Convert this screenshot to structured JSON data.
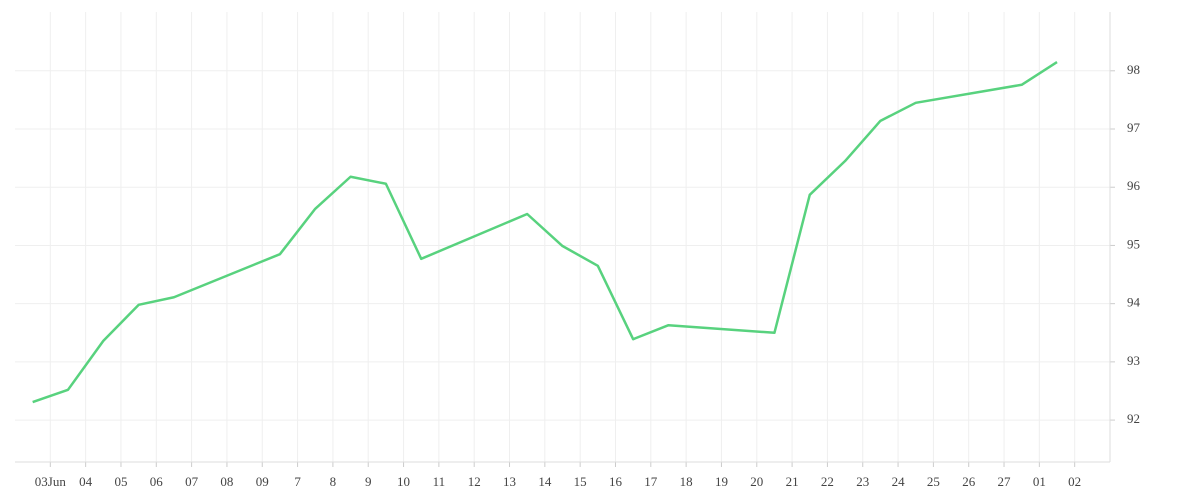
{
  "chart_data": {
    "type": "line",
    "x": [
      -0.5,
      0.5,
      1.5,
      2.5,
      3.5,
      6.5,
      7.5,
      8.5,
      9.5,
      10.5,
      13.5,
      14.5,
      15.5,
      16.5,
      17.5,
      20.5,
      21.5,
      22.5,
      23.5,
      24.5,
      27.5,
      28.5
    ],
    "series": [
      {
        "color": "#58d27e",
        "values": [
          92.31,
          92.52,
          93.36,
          93.98,
          94.11,
          94.85,
          95.63,
          96.18,
          96.06,
          94.77,
          95.54,
          94.99,
          94.65,
          93.39,
          93.63,
          93.5,
          95.87,
          96.45,
          97.14,
          97.45,
          97.76,
          98.15
        ]
      }
    ],
    "xlim": [
      -1,
      30
    ],
    "xticks": [
      {
        "value": 0,
        "label": "03Jun"
      },
      {
        "value": 1,
        "label": "04"
      },
      {
        "value": 2,
        "label": "05"
      },
      {
        "value": 3,
        "label": "06"
      },
      {
        "value": 4,
        "label": "07"
      },
      {
        "value": 5,
        "label": "08"
      },
      {
        "value": 6,
        "label": "09"
      },
      7,
      8,
      9,
      10,
      11,
      12,
      13,
      14,
      15,
      16,
      17,
      18,
      19,
      20,
      21,
      22,
      23,
      24,
      25,
      26,
      27,
      {
        "value": 28,
        "label": "01"
      },
      {
        "value": 29,
        "label": "02"
      }
    ],
    "ylim": [
      91.28,
      99.01
    ],
    "yticks": [
      92,
      93,
      94,
      95,
      96,
      97,
      98
    ],
    "grid": true
  }
}
